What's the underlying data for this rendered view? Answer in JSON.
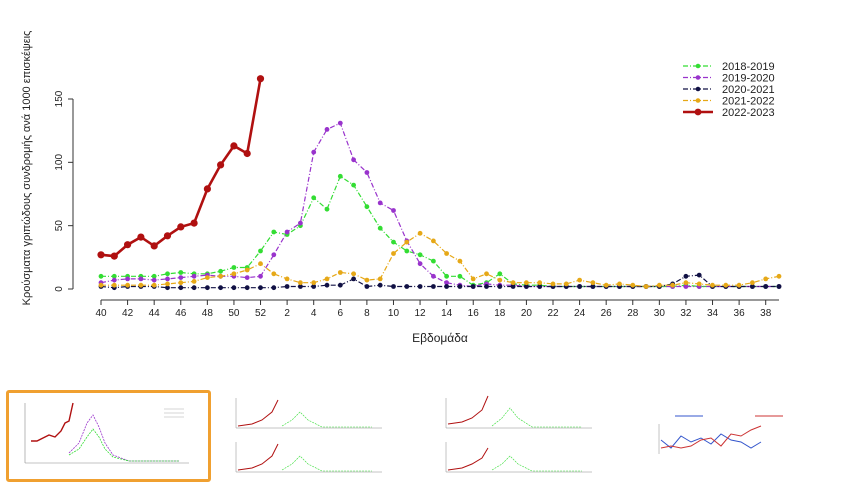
{
  "chart_data": {
    "type": "line",
    "xlabel": "Εβδομάδα",
    "ylabel": "Κρούσματα γριπώδους συνδρομής ανά 1000 επισκέψεις",
    "x_ticks": [
      "40",
      "42",
      "44",
      "46",
      "48",
      "50",
      "52",
      "2",
      "4",
      "6",
      "8",
      "10",
      "12",
      "14",
      "16",
      "18",
      "20",
      "22",
      "24",
      "26",
      "28",
      "30",
      "32",
      "34",
      "36",
      "38"
    ],
    "weeks": [
      "40",
      "41",
      "42",
      "43",
      "44",
      "45",
      "46",
      "47",
      "48",
      "49",
      "50",
      "51",
      "52",
      "1",
      "2",
      "3",
      "4",
      "5",
      "6",
      "7",
      "8",
      "9",
      "10",
      "11",
      "12",
      "13",
      "14",
      "15",
      "16",
      "17",
      "18",
      "19",
      "20",
      "21",
      "22",
      "23",
      "24",
      "25",
      "26",
      "27",
      "28",
      "29",
      "30",
      "31",
      "32",
      "33",
      "34",
      "35",
      "36",
      "37",
      "38",
      "39"
    ],
    "y_ticks": [
      "0",
      "50",
      "100",
      "150"
    ],
    "ylim": [
      0,
      180
    ],
    "legend_position": "top-right",
    "series": [
      {
        "name": "2018-2019",
        "color": "#33dd33",
        "style": "dashdot",
        "marker": "circle",
        "values": [
          10,
          10,
          10,
          10,
          10,
          12,
          13,
          12,
          12,
          14,
          17,
          17,
          30,
          45,
          43,
          50,
          72,
          63,
          89,
          82,
          65,
          48,
          37,
          30,
          27,
          22,
          10,
          10,
          3,
          5,
          12,
          4,
          3,
          3,
          2,
          2,
          2,
          2,
          2,
          2,
          2,
          2,
          2,
          2,
          3,
          2,
          2,
          2,
          2,
          2,
          2,
          2
        ]
      },
      {
        "name": "2019-2020",
        "color": "#9933cc",
        "style": "dashdot",
        "marker": "circle",
        "values": [
          5,
          7,
          8,
          8,
          7,
          8,
          9,
          10,
          11,
          10,
          10,
          9,
          10,
          27,
          45,
          52,
          108,
          126,
          131,
          102,
          92,
          68,
          62,
          38,
          20,
          10,
          5,
          3,
          2,
          4,
          3,
          3,
          2,
          2,
          2,
          2,
          2,
          2,
          2,
          2,
          2,
          2,
          2,
          2,
          2,
          2,
          2,
          2,
          2,
          2,
          2,
          2
        ]
      },
      {
        "name": "2020-2021",
        "color": "#111144",
        "style": "dashdot",
        "marker": "circle",
        "values": [
          2,
          1,
          2,
          2,
          2,
          1,
          1,
          1,
          1,
          1,
          1,
          1,
          1,
          1,
          2,
          2,
          2,
          3,
          3,
          8,
          2,
          3,
          2,
          2,
          2,
          2,
          2,
          2,
          2,
          2,
          2,
          2,
          2,
          2,
          2,
          2,
          2,
          2,
          2,
          2,
          2,
          2,
          2,
          4,
          10,
          11,
          2,
          2,
          2,
          2,
          2,
          2
        ]
      },
      {
        "name": "2021-2022",
        "color": "#e6a817",
        "style": "dashdot",
        "marker": "circle",
        "values": [
          3,
          3,
          3,
          3,
          3,
          4,
          5,
          6,
          9,
          10,
          12,
          15,
          20,
          12,
          8,
          5,
          5,
          8,
          13,
          12,
          7,
          8,
          28,
          37,
          44,
          38,
          28,
          22,
          8,
          12,
          7,
          5,
          5,
          5,
          4,
          4,
          7,
          5,
          3,
          4,
          3,
          2,
          3,
          3,
          5,
          4,
          3,
          3,
          3,
          5,
          8,
          10
        ]
      },
      {
        "name": "2022-2023",
        "color": "#b01010",
        "style": "solid",
        "marker": "circle",
        "values": [
          27,
          26,
          35,
          41,
          34,
          42,
          49,
          52,
          79,
          98,
          113,
          107,
          166
        ]
      }
    ]
  },
  "thumbnails": [
    {
      "name": "slide-1",
      "selected": true
    },
    {
      "name": "slide-2",
      "selected": false
    },
    {
      "name": "slide-3",
      "selected": false
    },
    {
      "name": "slide-4",
      "selected": false
    }
  ]
}
